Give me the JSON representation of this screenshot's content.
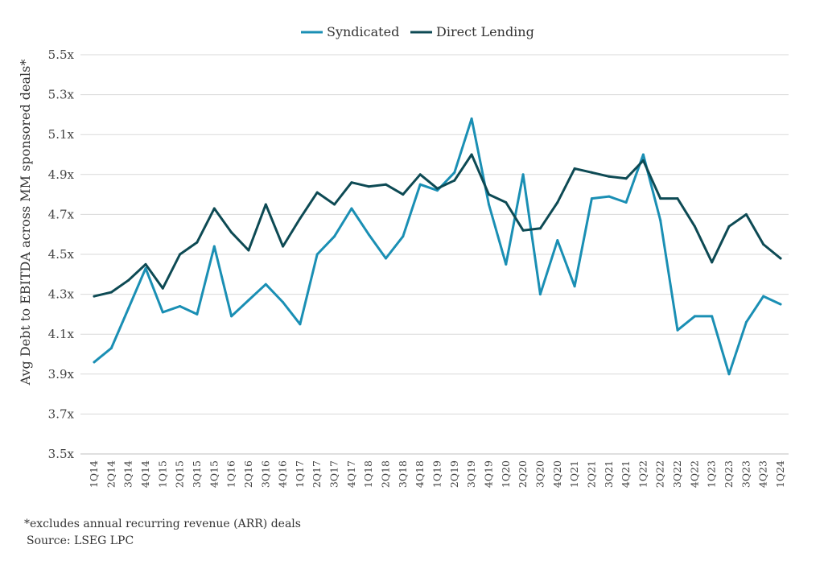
{
  "chart_data": {
    "type": "line",
    "ylabel": "Avg Debt to EBITDA across MM sponsored deals*",
    "ylim": [
      3.5,
      5.5
    ],
    "yticks": [
      "3.5x",
      "3.7x",
      "3.9x",
      "4.1x",
      "4.3x",
      "4.5x",
      "4.7x",
      "4.9x",
      "5.1x",
      "5.3x",
      "5.5x"
    ],
    "grid": true,
    "legend_position": "top-center",
    "categories": [
      "1Q14",
      "2Q14",
      "3Q14",
      "4Q14",
      "1Q15",
      "2Q15",
      "3Q15",
      "4Q15",
      "1Q16",
      "2Q16",
      "3Q16",
      "4Q16",
      "1Q17",
      "2Q17",
      "3Q17",
      "4Q17",
      "1Q18",
      "2Q18",
      "3Q18",
      "4Q18",
      "1Q19",
      "2Q19",
      "3Q19",
      "4Q19",
      "1Q20",
      "2Q20",
      "3Q20",
      "4Q20",
      "1Q21",
      "2Q21",
      "3Q21",
      "4Q21",
      "1Q22",
      "2Q22",
      "3Q22",
      "4Q22",
      "1Q23",
      "2Q23",
      "3Q23",
      "4Q23",
      "1Q24"
    ],
    "series": [
      {
        "name": "Syndicated",
        "color": "#1a8fb4",
        "values": [
          3.96,
          4.03,
          4.23,
          4.43,
          4.21,
          4.24,
          4.2,
          4.54,
          4.19,
          4.27,
          4.35,
          4.26,
          4.15,
          4.5,
          4.59,
          4.73,
          4.6,
          4.48,
          4.59,
          4.85,
          4.82,
          4.91,
          5.18,
          4.75,
          4.45,
          4.9,
          4.3,
          4.57,
          4.34,
          4.78,
          4.79,
          4.76,
          5.0,
          4.67,
          4.12,
          4.19,
          4.19,
          3.9,
          4.16,
          4.29,
          4.25
        ]
      },
      {
        "name": "Direct Lending",
        "color": "#0d4a54",
        "values": [
          4.29,
          4.31,
          4.37,
          4.45,
          4.33,
          4.5,
          4.56,
          4.73,
          4.61,
          4.52,
          4.75,
          4.54,
          4.68,
          4.81,
          4.75,
          4.86,
          4.84,
          4.85,
          4.8,
          4.9,
          4.83,
          4.87,
          5.0,
          4.8,
          4.76,
          4.62,
          4.63,
          4.76,
          4.93,
          4.91,
          4.89,
          4.88,
          4.97,
          4.78,
          4.78,
          4.64,
          4.46,
          4.64,
          4.7,
          4.55,
          4.48
        ]
      }
    ]
  },
  "footnote": {
    "note": "*excludes annual recurring revenue (ARR) deals",
    "source": "Source: LSEG LPC"
  }
}
